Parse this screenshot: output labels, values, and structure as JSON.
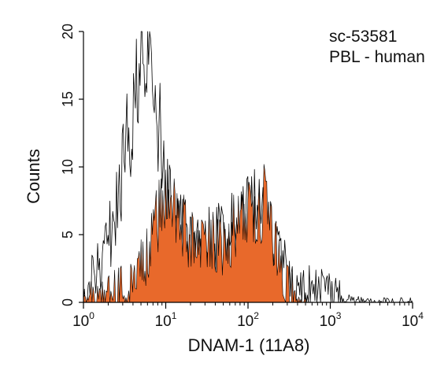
{
  "annotation": {
    "catalog": "sc-53581",
    "sample": "PBL - human"
  },
  "chart_data": {
    "type": "area",
    "title": "",
    "xlabel": "DNAM-1 (11A8)",
    "ylabel": "Counts",
    "x_scale": "log10",
    "xlim": [
      1,
      10000
    ],
    "ylim": [
      0,
      20
    ],
    "x_ticks": [
      {
        "value": 1,
        "base": "10",
        "exp": "0"
      },
      {
        "value": 10,
        "base": "10",
        "exp": "1"
      },
      {
        "value": 100,
        "base": "10",
        "exp": "2"
      },
      {
        "value": 1000,
        "base": "10",
        "exp": "3"
      },
      {
        "value": 10000,
        "base": "10",
        "exp": "4"
      }
    ],
    "y_ticks": [
      "0",
      "5",
      "10",
      "15",
      "20"
    ],
    "grid": false,
    "legend": "none",
    "series": [
      {
        "style": "outline",
        "color": "#000000",
        "x": [
          1.0,
          1.2,
          1.5,
          1.8,
          2.1,
          2.5,
          3.0,
          3.5,
          4.0,
          4.5,
          5.0,
          5.6,
          6.3,
          7.0,
          7.9,
          8.9,
          10.0,
          11.2,
          12.6,
          14.1,
          15.8,
          17.8,
          20.0,
          25.1,
          31.6,
          39.8,
          50.1,
          63.1,
          79.4,
          100.0,
          125.9,
          158.5,
          199.5,
          251.2,
          316.2,
          398.1,
          501.2,
          631.0,
          794.3,
          1000.0,
          1259.0,
          1585.0,
          1995.0,
          3162.0,
          10000.0
        ],
        "values": [
          0.5,
          1.5,
          2.5,
          3.5,
          5.0,
          7.0,
          9.5,
          12.0,
          14.5,
          16.5,
          17.5,
          18.0,
          17.5,
          16.0,
          14.0,
          11.0,
          8.5,
          7.5,
          7.0,
          6.5,
          6.0,
          5.5,
          5.0,
          4.5,
          4.5,
          4.5,
          5.0,
          5.5,
          6.5,
          7.0,
          7.0,
          6.0,
          4.5,
          3.0,
          2.0,
          1.5,
          1.0,
          1.0,
          0.8,
          0.6,
          0.5,
          0.4,
          0.2,
          0.1,
          0.0
        ]
      },
      {
        "style": "filled",
        "color": "#e8692b",
        "x": [
          1.0,
          1.5,
          2.0,
          2.5,
          3.0,
          3.5,
          4.0,
          4.5,
          5.0,
          5.6,
          6.3,
          7.1,
          7.9,
          8.9,
          10.0,
          11.2,
          12.6,
          14.1,
          15.8,
          17.8,
          20.0,
          22.4,
          25.1,
          28.2,
          31.6,
          35.5,
          39.8,
          44.7,
          50.1,
          56.2,
          63.1,
          70.8,
          79.4,
          89.1,
          100.0,
          112.2,
          125.9,
          141.3,
          158.5,
          177.8,
          199.5,
          223.9,
          251.2,
          281.8,
          316.2,
          354.8,
          398.1,
          446.7,
          501.2
        ],
        "values": [
          0.3,
          0.5,
          0.6,
          0.8,
          1.0,
          1.5,
          2.0,
          3.0,
          3.5,
          3.0,
          4.0,
          5.0,
          6.0,
          7.0,
          7.5,
          8.0,
          7.5,
          7.0,
          6.0,
          5.0,
          4.5,
          4.5,
          4.0,
          4.0,
          4.5,
          5.0,
          4.5,
          4.0,
          4.5,
          5.0,
          5.0,
          5.5,
          6.0,
          7.0,
          7.5,
          7.5,
          7.0,
          7.0,
          7.5,
          6.5,
          5.0,
          3.5,
          2.5,
          1.5,
          1.0,
          0.6,
          0.3,
          0.1,
          0.0
        ]
      }
    ]
  }
}
